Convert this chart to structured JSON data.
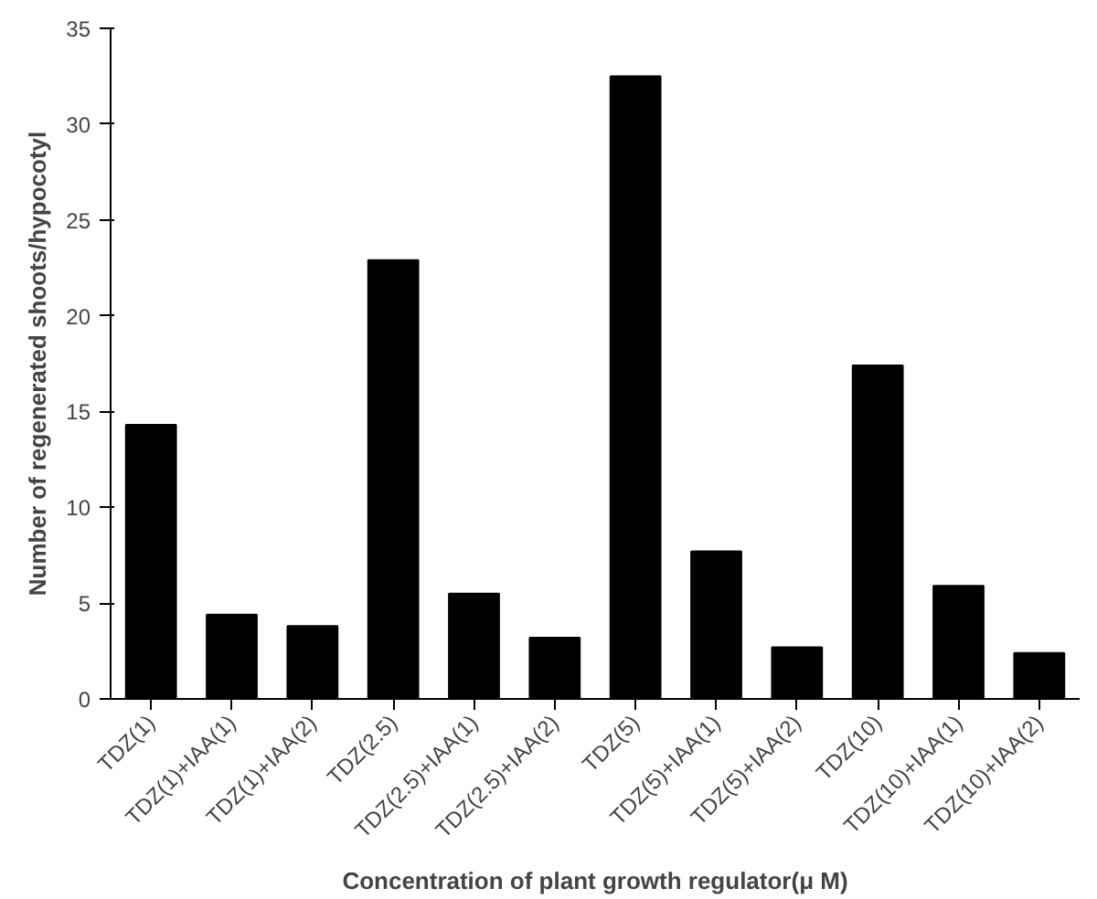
{
  "chart_data": {
    "type": "bar",
    "xlabel": "Concentration of plant growth regulator(μ M)",
    "ylabel": "Number of regenerated shoots/hypocotyl",
    "categories": [
      "TDZ(1)",
      "TDZ(1)+IAA(1)",
      "TDZ(1)+IAA(2)",
      "TDZ(2.5)",
      "TDZ(2.5)+IAA(1)",
      "TDZ(2.5)+IAA(2)",
      "TDZ(5)",
      "TDZ(5)+IAA(1)",
      "TDZ(5)+IAA(2)",
      "TDZ(10)",
      "TDZ(10)+IAA(1)",
      "TDZ(10)+IAA(2)"
    ],
    "values": [
      14.3,
      4.4,
      3.8,
      22.9,
      5.5,
      3.2,
      32.5,
      7.7,
      2.7,
      17.4,
      5.9,
      2.4
    ],
    "color": "#000000",
    "ylim": [
      0,
      35
    ],
    "yticks": [
      0,
      5,
      10,
      15,
      20,
      25,
      30,
      35
    ],
    "grid": false
  }
}
